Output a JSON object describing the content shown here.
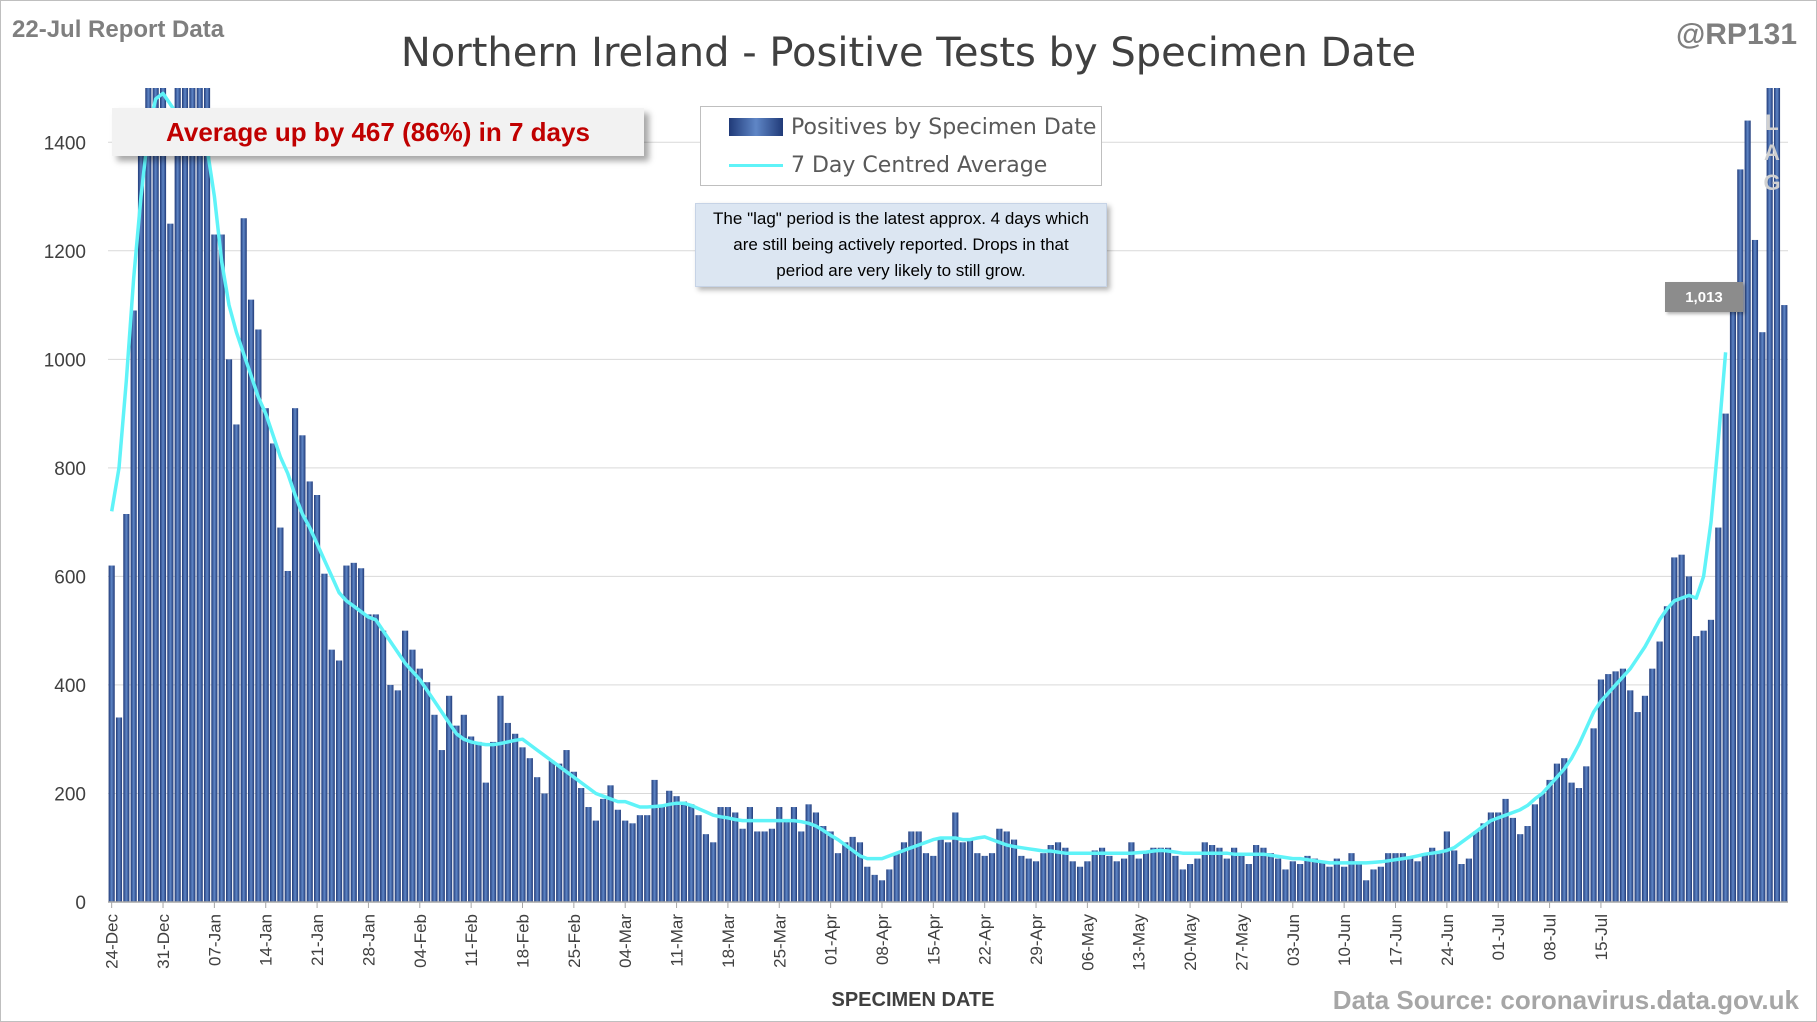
{
  "header": {
    "report_date": "22-Jul Report Data",
    "handle": "@RP131",
    "title": "Northern Ireland - Positive Tests by Specimen Date"
  },
  "callout": {
    "text": "Average up by 467 (86%) in 7 days"
  },
  "legend": {
    "bars_label": "Positives by Specimen Date",
    "line_label": "7 Day Centred Average"
  },
  "note": {
    "text": "The \"lag\" period is the latest approx. 4 days which are still being actively reported. Drops in that period are very likely to still grow."
  },
  "last_average_label": "1,013",
  "lag_letters": [
    "L",
    "A",
    "G"
  ],
  "source": "Data Source: coronavirus.data.gov.uk",
  "colors": {
    "bar_dark": "#203a78",
    "bar_light": "#5f86c6",
    "average_line": "#5ff3f8",
    "callout_text": "#c00000",
    "grid": "#d9d9d9"
  },
  "chart_data": {
    "type": "bar",
    "title": "Northern Ireland - Positive Tests by Specimen Date",
    "xlabel": "SPECIMEN DATE",
    "ylabel": "",
    "ylim": [
      0,
      1500
    ],
    "yticks": [
      0,
      200,
      400,
      600,
      800,
      1000,
      1200,
      1400
    ],
    "grid": true,
    "legend_position": "top-center",
    "x_tick_labels": [
      "24-Dec",
      "31-Dec",
      "07-Jan",
      "14-Jan",
      "21-Jan",
      "28-Jan",
      "04-Feb",
      "11-Feb",
      "18-Feb",
      "25-Feb",
      "04-Mar",
      "11-Mar",
      "18-Mar",
      "25-Mar",
      "01-Apr",
      "08-Apr",
      "15-Apr",
      "22-Apr",
      "29-Apr",
      "06-May",
      "13-May",
      "20-May",
      "27-May",
      "03-Jun",
      "10-Jun",
      "17-Jun",
      "24-Jun",
      "01-Jul",
      "08-Jul",
      "15-Jul"
    ],
    "start_date": "24-Dec",
    "series": [
      {
        "name": "Positives by Specimen Date",
        "type": "bar",
        "values": [
          620,
          340,
          715,
          1090,
          1400,
          1500,
          1500,
          1500,
          1250,
          1500,
          1500,
          1500,
          1500,
          1500,
          1230,
          1230,
          1000,
          880,
          1260,
          1110,
          1055,
          910,
          845,
          690,
          610,
          910,
          860,
          775,
          750,
          605,
          465,
          445,
          620,
          625,
          615,
          530,
          530,
          500,
          400,
          390,
          500,
          465,
          430,
          405,
          345,
          280,
          380,
          325,
          345,
          305,
          295,
          220,
          295,
          380,
          330,
          310,
          285,
          265,
          230,
          200,
          260,
          255,
          280,
          240,
          210,
          175,
          150,
          190,
          215,
          170,
          150,
          145,
          160,
          160,
          225,
          175,
          205,
          195,
          185,
          180,
          160,
          125,
          110,
          175,
          175,
          165,
          135,
          175,
          130,
          130,
          135,
          175,
          150,
          175,
          130,
          180,
          165,
          140,
          130,
          90,
          110,
          120,
          110,
          65,
          50,
          40,
          60,
          90,
          110,
          130,
          130,
          90,
          85,
          115,
          110,
          165,
          110,
          115,
          90,
          85,
          90,
          135,
          130,
          115,
          85,
          80,
          75,
          90,
          105,
          110,
          100,
          75,
          65,
          75,
          95,
          100,
          85,
          75,
          80,
          110,
          80,
          90,
          100,
          100,
          100,
          85,
          60,
          70,
          80,
          110,
          105,
          100,
          80,
          100,
          90,
          70,
          105,
          100,
          90,
          80,
          60,
          75,
          70,
          85,
          80,
          75,
          65,
          80,
          65,
          90,
          70,
          40,
          60,
          65,
          90,
          90,
          90,
          80,
          75,
          90,
          100,
          90,
          130,
          95,
          70,
          80,
          130,
          145,
          165,
          165,
          190,
          155,
          125,
          140,
          180,
          200,
          225,
          255,
          265,
          220,
          210,
          250,
          320,
          410,
          420,
          425,
          430,
          390,
          350,
          380,
          430,
          480,
          545,
          635,
          640,
          600,
          490,
          500,
          520,
          690,
          900,
          1120,
          1350,
          1440,
          1220,
          1050,
          1500,
          1500,
          1100
        ]
      },
      {
        "name": "7 Day Centred Average",
        "type": "line",
        "values": [
          720,
          800,
          960,
          1150,
          1300,
          1420,
          1480,
          1490,
          1470,
          1450,
          1450,
          1450,
          1420,
          1390,
          1300,
          1180,
          1100,
          1050,
          1010,
          970,
          930,
          900,
          860,
          820,
          790,
          750,
          715,
          690,
          660,
          630,
          600,
          570,
          555,
          545,
          535,
          525,
          520,
          500,
          480,
          460,
          440,
          425,
          410,
          390,
          370,
          350,
          330,
          310,
          300,
          295,
          292,
          290,
          290,
          292,
          295,
          298,
          300,
          290,
          280,
          270,
          260,
          250,
          240,
          230,
          220,
          210,
          200,
          195,
          190,
          185,
          185,
          180,
          175,
          175,
          176,
          177,
          180,
          182,
          182,
          178,
          172,
          166,
          160,
          157,
          155,
          152,
          150,
          150,
          150,
          150,
          150,
          150,
          150,
          150,
          148,
          145,
          140,
          132,
          123,
          115,
          105,
          95,
          85,
          80,
          80,
          80,
          85,
          90,
          95,
          100,
          105,
          110,
          115,
          118,
          118,
          118,
          115,
          115,
          118,
          120,
          115,
          110,
          105,
          102,
          100,
          98,
          96,
          94,
          94,
          92,
          90,
          90,
          90,
          90,
          90,
          90,
          90,
          90,
          90,
          90,
          91,
          92,
          94,
          95,
          94,
          92,
          90,
          90,
          90,
          90,
          90,
          90,
          90,
          88,
          88,
          88,
          88,
          88,
          86,
          84,
          82,
          80,
          80,
          78,
          76,
          74,
          72,
          72,
          72,
          72,
          72,
          72,
          73,
          74,
          76,
          78,
          80,
          82,
          85,
          88,
          90,
          92,
          95,
          100,
          110,
          120,
          130,
          140,
          150,
          155,
          160,
          165,
          170,
          178,
          190,
          200,
          215,
          230,
          245,
          265,
          290,
          320,
          350,
          370,
          385,
          400,
          415,
          430,
          450,
          470,
          495,
          520,
          540,
          555,
          560,
          565,
          560,
          600,
          700,
          850,
          1013
        ]
      }
    ]
  }
}
